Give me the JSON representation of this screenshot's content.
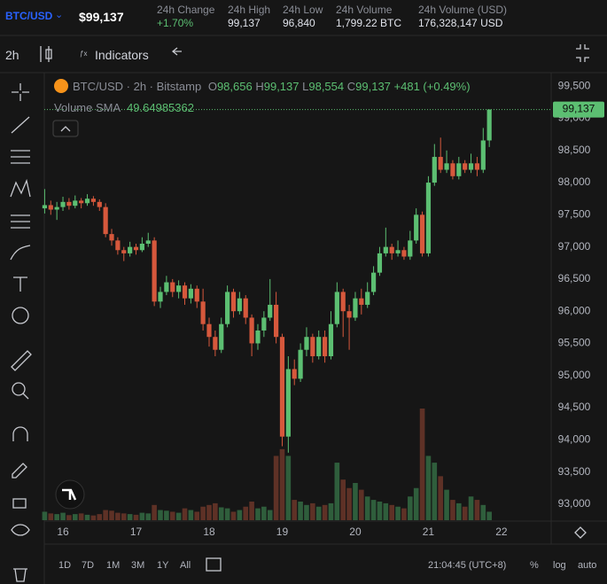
{
  "header": {
    "symbol": "BTC/USD",
    "price": "$99,137",
    "stats": [
      {
        "label": "24h Change",
        "value": "+1.70%"
      },
      {
        "label": "24h High",
        "value": "99,137"
      },
      {
        "label": "24h Low",
        "value": "96,840"
      },
      {
        "label": "24h Volume",
        "value": "1,799.22 BTC"
      },
      {
        "label": "24h Volume (USD)",
        "value": "176,328,147 USD"
      }
    ]
  },
  "toolbar": {
    "interval": "2h",
    "indicators": "Indicators"
  },
  "chart_data": {
    "type": "candlestick",
    "title": "BTC/USD · 2h · Bitstamp",
    "ohlc_labels": [
      {
        "key": "O",
        "value": "98,656"
      },
      {
        "key": "H",
        "value": "99,137"
      },
      {
        "key": "L",
        "value": "98,554"
      },
      {
        "key": "C",
        "value": "99,137"
      }
    ],
    "change": "+481 (+0.49%)",
    "volume_label": "Volume SMA",
    "volume_sma": "49.64985362",
    "last_price_label": "99,137",
    "up_color": "#5cbf72",
    "down_color": "#d6583c",
    "volume_up_color": "#2f5e3c",
    "volume_down_color": "#5e3126",
    "x": [
      15.75,
      15.8333,
      15.9167,
      16,
      16.0833,
      16.1667,
      16.25,
      16.3333,
      16.4167,
      16.5,
      16.5833,
      16.6667,
      16.75,
      16.8333,
      16.9167,
      17,
      17.0833,
      17.1667,
      17.25,
      17.3333,
      17.4167,
      17.5,
      17.5833,
      17.6667,
      17.75,
      17.8333,
      17.9167,
      18,
      18.0833,
      18.1667,
      18.25,
      18.3333,
      18.4167,
      18.5,
      18.5833,
      18.6667,
      18.75,
      18.8333,
      18.9167,
      19,
      19.0833,
      19.1667,
      19.25,
      19.3333,
      19.4167,
      19.5,
      19.5833,
      19.6667,
      19.75,
      19.8333,
      19.9167,
      20,
      20.0833,
      20.1667,
      20.25,
      20.3333,
      20.4167,
      20.5,
      20.5833,
      20.6667,
      20.75,
      20.8333,
      20.9167,
      21,
      21.0833,
      21.1667,
      21.25,
      21.3333,
      21.4167,
      21.5,
      21.5833,
      21.6667,
      21.75,
      21.8333
    ],
    "open": [
      97600,
      97650,
      97580,
      97620,
      97700,
      97640,
      97720,
      97680,
      97750,
      97700,
      97620,
      97200,
      97100,
      96950,
      96900,
      97000,
      96950,
      97050,
      97100,
      96150,
      96300,
      96450,
      96300,
      96400,
      96200,
      96350,
      96150,
      95800,
      95600,
      95400,
      95800,
      96300,
      96000,
      96200,
      95900,
      95500,
      95700,
      95900,
      96100,
      95600,
      94050,
      95100,
      94950,
      95400,
      95600,
      95300,
      95600,
      95300,
      95800,
      96300,
      96000,
      95900,
      96200,
      96100,
      96300,
      96600,
      96900,
      97000,
      96900,
      96950,
      96850,
      97100,
      97500,
      96900,
      98000,
      98400,
      98200,
      98300,
      98100,
      98300,
      98200,
      98300,
      98200,
      98656
    ],
    "high": [
      97900,
      97720,
      97700,
      97780,
      97760,
      97800,
      97760,
      97820,
      97790,
      97740,
      97680,
      97280,
      97150,
      97000,
      97080,
      97050,
      97150,
      97220,
      97150,
      96380,
      96550,
      96500,
      96480,
      96450,
      96420,
      96400,
      96350,
      95900,
      95700,
      95900,
      96400,
      96350,
      96300,
      96250,
      95950,
      95800,
      96000,
      96500,
      96300,
      95650,
      95300,
      95250,
      95500,
      95750,
      95650,
      95700,
      95700,
      96000,
      96450,
      96350,
      96100,
      96300,
      96350,
      96450,
      96700,
      97000,
      97300,
      97050,
      97100,
      97000,
      97250,
      97600,
      97550,
      98100,
      98600,
      98700,
      98500,
      98350,
      98400,
      98350,
      98450,
      98400,
      98850,
      99137
    ],
    "low": [
      97520,
      97500,
      97420,
      97560,
      97580,
      97600,
      97600,
      97640,
      97640,
      97560,
      97150,
      97020,
      96880,
      96780,
      96850,
      96880,
      96920,
      97000,
      96080,
      96050,
      96250,
      96220,
      96200,
      96100,
      96120,
      96050,
      95700,
      95450,
      95300,
      95350,
      95750,
      95900,
      95950,
      95800,
      95300,
      95400,
      95600,
      95850,
      95500,
      93900,
      93800,
      94850,
      94900,
      95300,
      95200,
      95250,
      95200,
      95250,
      95750,
      95600,
      95400,
      95850,
      95950,
      96050,
      96250,
      96550,
      96850,
      96800,
      96850,
      96800,
      96800,
      97050,
      96850,
      96850,
      97950,
      98150,
      98150,
      98050,
      98050,
      98150,
      98150,
      98100,
      98150,
      98554
    ],
    "close": [
      97650,
      97580,
      97620,
      97700,
      97640,
      97720,
      97680,
      97750,
      97700,
      97620,
      97200,
      97100,
      96950,
      96900,
      97000,
      96950,
      97050,
      97100,
      96150,
      96300,
      96450,
      96300,
      96400,
      96200,
      96350,
      96150,
      95800,
      95600,
      95400,
      95800,
      96300,
      96000,
      96200,
      95900,
      95500,
      95700,
      95900,
      96100,
      95600,
      94050,
      95100,
      94950,
      95400,
      95600,
      95300,
      95600,
      95300,
      95800,
      96300,
      96000,
      95900,
      96200,
      96100,
      96300,
      96600,
      96900,
      97000,
      96900,
      96950,
      96850,
      97100,
      97500,
      96900,
      98000,
      98400,
      98200,
      98300,
      98100,
      98300,
      98200,
      98300,
      98200,
      98656,
      99137
    ],
    "volume": [
      25,
      20,
      18,
      22,
      15,
      18,
      20,
      16,
      14,
      18,
      30,
      28,
      22,
      20,
      18,
      16,
      22,
      20,
      45,
      30,
      28,
      25,
      22,
      35,
      30,
      25,
      40,
      45,
      50,
      38,
      35,
      25,
      30,
      40,
      55,
      35,
      40,
      30,
      190,
      210,
      190,
      60,
      55,
      45,
      50,
      40,
      45,
      50,
      170,
      120,
      95,
      110,
      90,
      70,
      60,
      55,
      50,
      45,
      40,
      35,
      70,
      95,
      330,
      190,
      170,
      130,
      90,
      60,
      50,
      40,
      70,
      60,
      45,
      25
    ],
    "xlim": [
      15.745,
      22.68
    ],
    "xticks": [
      16,
      17,
      18,
      19,
      20,
      21,
      22
    ],
    "ylim": [
      92750,
      99710
    ],
    "yticks": [
      {
        "value": 93000,
        "label": "93,000"
      },
      {
        "value": 93500,
        "label": "93,500"
      },
      {
        "value": 94000,
        "label": "94,000"
      },
      {
        "value": 94500,
        "label": "94,500"
      },
      {
        "value": 95000,
        "label": "95,000"
      },
      {
        "value": 95500,
        "label": "95,500"
      },
      {
        "value": 96000,
        "label": "96,000"
      },
      {
        "value": 96500,
        "label": "96,500"
      },
      {
        "value": 97000,
        "label": "97,000"
      },
      {
        "value": 97500,
        "label": "97,500"
      },
      {
        "value": 98000,
        "label": "98,000"
      },
      {
        "value": 98500,
        "label": "98,500"
      },
      {
        "value": 99000,
        "label": "99,000"
      },
      {
        "value": 99500,
        "label": "99,500"
      }
    ]
  },
  "footer": {
    "ranges": [
      "1D",
      "7D",
      "1M",
      "3M",
      "1Y",
      "All"
    ],
    "time": "21:04:45 (UTC+8)",
    "options": [
      "%",
      "log",
      "auto"
    ]
  }
}
